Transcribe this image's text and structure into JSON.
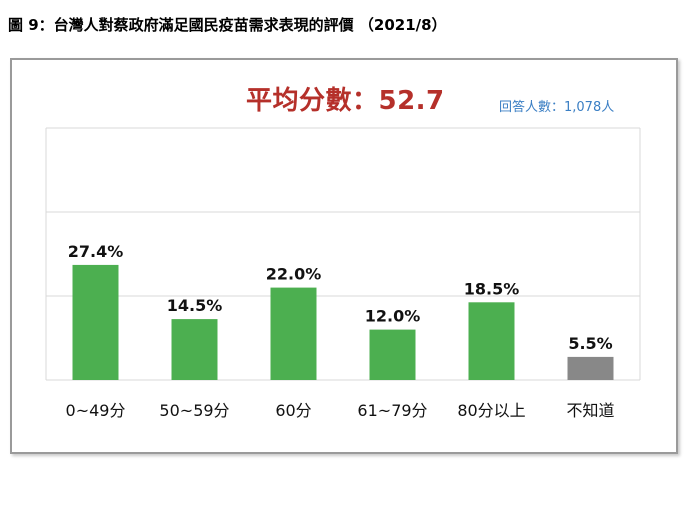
{
  "title": "圖 9：台灣人對蔡政府滿足國民疫苗需求表現的評價 （2021/8）",
  "average_label": "平均分數：52.7",
  "respondents_label": "回答人數：1,078人",
  "colors": {
    "bar": "#4caf50",
    "bar_unknown": "#888888",
    "average_text": "#b5302a",
    "respondents_text": "#3b7fc4",
    "gridline": "#d9d9d9"
  },
  "chart_data": {
    "type": "bar",
    "title": "",
    "xlabel": "",
    "ylabel": "",
    "categories": [
      "0~49分",
      "50~59分",
      "60分",
      "61~79分",
      "80分以上",
      "不知道"
    ],
    "values": [
      27.4,
      14.5,
      22.0,
      12.0,
      18.5,
      5.5
    ],
    "value_labels": [
      "27.4%",
      "14.5%",
      "22.0%",
      "12.0%",
      "18.5%",
      "5.5%"
    ],
    "ylim": [
      0,
      60
    ],
    "grid": true
  }
}
